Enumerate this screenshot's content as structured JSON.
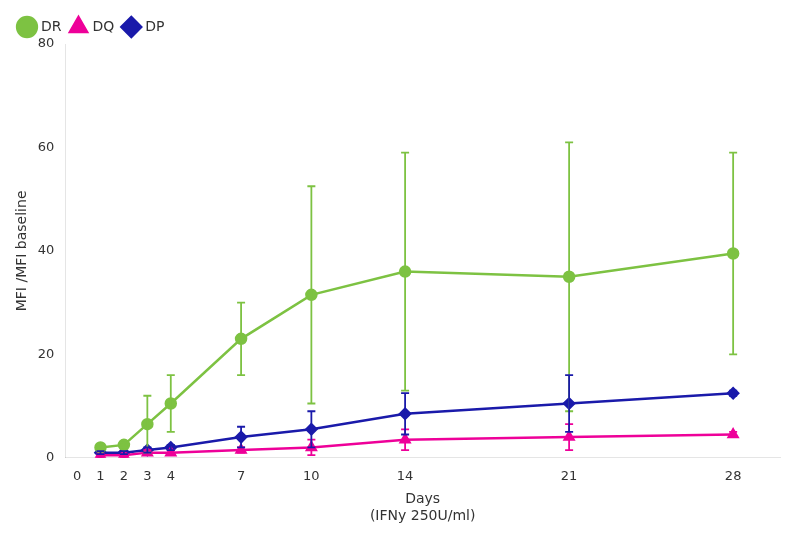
{
  "chart_data": {
    "type": "line",
    "xlabel": "Days\n(IFNy 250U/ml)",
    "ylabel": "MFI /MFI baseline",
    "x": [
      1,
      2,
      3,
      4,
      7,
      10,
      14,
      21,
      28
    ],
    "series": [
      {
        "name": "DR",
        "color": "#7dc242",
        "marker": "circle",
        "values": [
          2.0,
          2.5,
          6.5,
          10.5,
          23.0,
          31.5,
          36.0,
          35.0,
          39.5
        ],
        "errors": [
          0.5,
          0.5,
          5.5,
          5.5,
          7.0,
          21.0,
          23.0,
          26.0,
          19.5
        ]
      },
      {
        "name": "DQ",
        "color": "#ee0099",
        "marker": "triangle",
        "values": [
          0.5,
          0.5,
          1.0,
          1.0,
          1.5,
          2.0,
          3.5,
          4.0,
          4.5
        ],
        "errors": [
          0.3,
          0.3,
          0.5,
          0.5,
          0.5,
          1.5,
          2.0,
          2.5,
          0.5
        ]
      },
      {
        "name": "DP",
        "color": "#1a1aaa",
        "marker": "diamond",
        "values": [
          1.0,
          1.0,
          1.5,
          2.0,
          4.0,
          5.5,
          8.5,
          10.5,
          12.5
        ],
        "errors": [
          0.3,
          0.3,
          0.5,
          0.5,
          2.0,
          3.5,
          4.0,
          5.5,
          0.5
        ]
      }
    ],
    "xlim": [
      -0.5,
      30
    ],
    "xticks": [
      0,
      1,
      2,
      3,
      4,
      7,
      10,
      14,
      21,
      28
    ],
    "ylim": [
      0,
      80
    ],
    "yticks": [
      0,
      20,
      40,
      60,
      80
    ],
    "grid": false,
    "legend": "upper left"
  }
}
